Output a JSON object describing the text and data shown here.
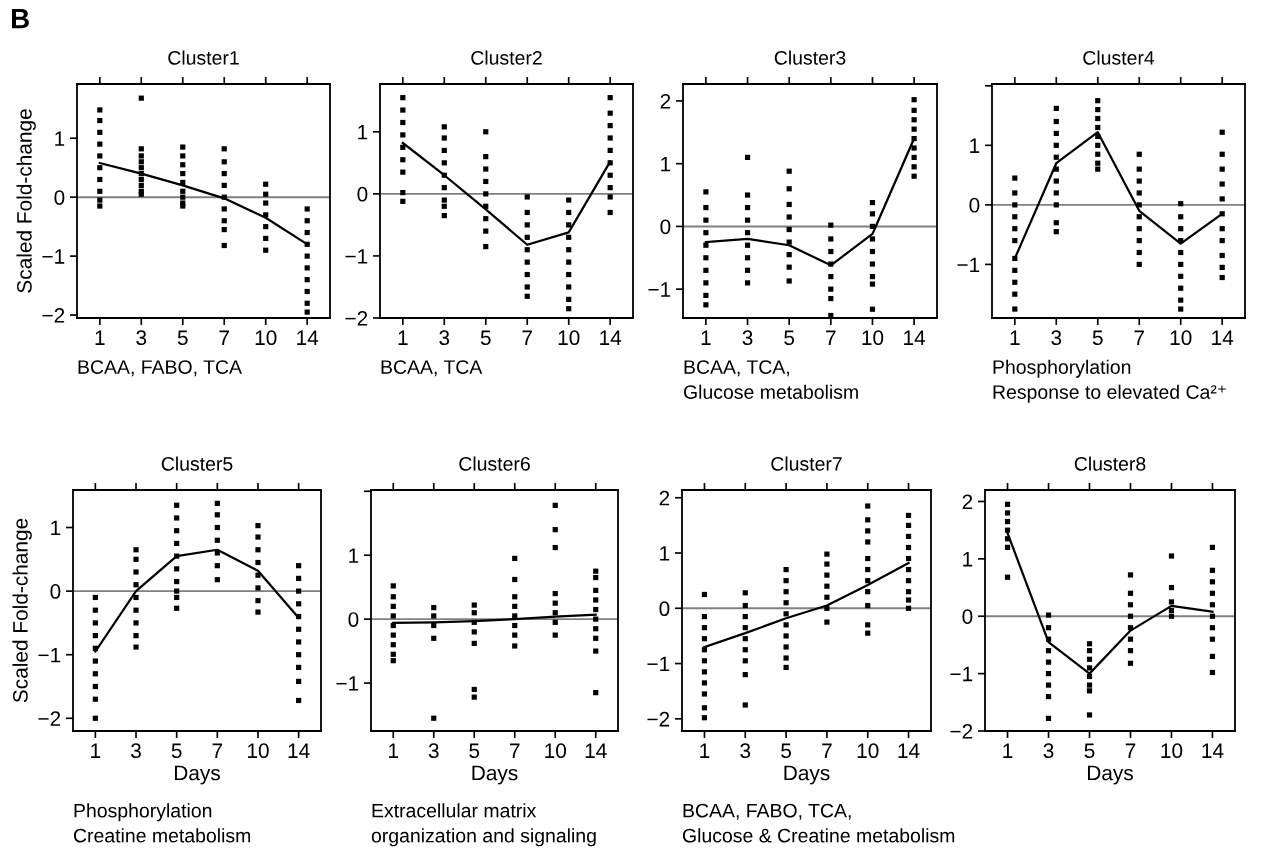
{
  "chart_data": [
    {
      "type": "other",
      "annotations": [
        "B"
      ]
    },
    {
      "type": "scatter",
      "title": "Cluster1",
      "ylabel": "Scaled Fold-change",
      "categories": [
        "1",
        "3",
        "5",
        "7",
        "10",
        "14"
      ],
      "ylim": [
        -2.05,
        1.92
      ],
      "yticks": [
        -2,
        -1,
        0,
        1
      ],
      "annotations": [
        "BCAA, FABO, TCA"
      ],
      "ref_lines": [
        {
          "axis": "y",
          "value": 0,
          "color": "#808080"
        }
      ],
      "series": [
        {
          "type": "scatter",
          "color": "#000000",
          "marker": "square",
          "x": [
            "1",
            "1",
            "1",
            "1",
            "1",
            "1",
            "1",
            "1",
            "1",
            "1",
            "3",
            "3",
            "3",
            "3",
            "3",
            "3",
            "3",
            "3",
            "3",
            "3",
            "5",
            "5",
            "5",
            "5",
            "5",
            "5",
            "5",
            "5",
            "5",
            "7",
            "7",
            "7",
            "7",
            "7",
            "7",
            "7",
            "7",
            "7",
            "10",
            "10",
            "10",
            "10",
            "10",
            "10",
            "10",
            "14",
            "14",
            "14",
            "14",
            "14",
            "14",
            "14",
            "14",
            "14",
            "14"
          ],
          "values": [
            1.48,
            1.3,
            1.1,
            0.9,
            0.7,
            0.5,
            0.3,
            0.1,
            -0.05,
            -0.15,
            1.68,
            0.82,
            0.7,
            0.6,
            0.5,
            0.4,
            0.3,
            0.2,
            0.1,
            0.05,
            0.85,
            0.7,
            0.55,
            0.4,
            0.25,
            0.1,
            0,
            -0.1,
            -0.15,
            0.82,
            0.6,
            0.4,
            0.2,
            0,
            -0.2,
            -0.4,
            -0.55,
            -0.82,
            0.22,
            0.05,
            -0.1,
            -0.3,
            -0.5,
            -0.7,
            -0.9,
            -0.2,
            -0.4,
            -0.6,
            -0.8,
            -1.0,
            -1.2,
            -1.4,
            -1.6,
            -1.8,
            -1.95
          ]
        },
        {
          "type": "line",
          "color": "#000000",
          "marker": "none",
          "values": [
            0.58,
            0.4,
            0.2,
            -0.02,
            -0.35,
            -0.8
          ]
        }
      ]
    },
    {
      "type": "scatter",
      "title": "Cluster2",
      "categories": [
        "1",
        "3",
        "5",
        "7",
        "10",
        "14"
      ],
      "ylim": [
        -2.0,
        1.77
      ],
      "yticks": [
        -2,
        -1,
        0,
        1
      ],
      "annotations": [
        "BCAA, TCA"
      ],
      "ref_lines": [
        {
          "axis": "y",
          "value": 0,
          "color": "#808080"
        }
      ],
      "series": [
        {
          "type": "scatter",
          "color": "#000000",
          "marker": "square",
          "x": [
            "1",
            "1",
            "1",
            "1",
            "1",
            "1",
            "1",
            "1",
            "1",
            "3",
            "3",
            "3",
            "3",
            "3",
            "3",
            "3",
            "3",
            "3",
            "5",
            "5",
            "5",
            "5",
            "5",
            "5",
            "5",
            "5",
            "5",
            "7",
            "7",
            "7",
            "7",
            "7",
            "7",
            "7",
            "7",
            "7",
            "10",
            "10",
            "10",
            "10",
            "10",
            "10",
            "10",
            "10",
            "10",
            "10",
            "14",
            "14",
            "14",
            "14",
            "14",
            "14",
            "14",
            "14",
            "14",
            "14"
          ],
          "values": [
            1.55,
            1.35,
            1.15,
            0.95,
            0.75,
            0.55,
            0.35,
            0.02,
            -0.12,
            1.08,
            0.9,
            0.7,
            0.5,
            0.3,
            0.1,
            -0.1,
            -0.2,
            -0.35,
            1.0,
            0.6,
            0.4,
            0.2,
            0,
            -0.2,
            -0.4,
            -0.6,
            -0.85,
            -0.05,
            -0.3,
            -0.5,
            -0.7,
            -0.9,
            -1.1,
            -1.3,
            -1.5,
            -1.65,
            -0.1,
            -0.3,
            -0.5,
            -0.7,
            -0.9,
            -1.1,
            -1.3,
            -1.5,
            -1.7,
            -1.85,
            1.55,
            1.3,
            1.1,
            0.9,
            0.7,
            0.5,
            0.3,
            0.1,
            -0.05,
            -0.3
          ]
        },
        {
          "type": "line",
          "color": "#000000",
          "marker": "none",
          "values": [
            0.82,
            0.3,
            -0.25,
            -0.82,
            -0.62,
            0.52
          ]
        }
      ]
    },
    {
      "type": "scatter",
      "title": "Cluster3",
      "categories": [
        "1",
        "3",
        "5",
        "7",
        "10",
        "14"
      ],
      "ylim": [
        -1.46,
        2.27
      ],
      "yticks": [
        -1,
        0,
        1,
        2
      ],
      "annotations": [
        "BCAA, TCA,",
        "Glucose metabolism"
      ],
      "ref_lines": [
        {
          "axis": "y",
          "value": 0,
          "color": "#808080"
        }
      ],
      "series": [
        {
          "type": "scatter",
          "color": "#000000",
          "marker": "square",
          "x": [
            "1",
            "1",
            "1",
            "1",
            "1",
            "1",
            "1",
            "1",
            "1",
            "1",
            "3",
            "3",
            "3",
            "3",
            "3",
            "3",
            "3",
            "3",
            "3",
            "5",
            "5",
            "5",
            "5",
            "5",
            "5",
            "5",
            "5",
            "5",
            "7",
            "7",
            "7",
            "7",
            "7",
            "7",
            "7",
            "7",
            "10",
            "10",
            "10",
            "10",
            "10",
            "10",
            "10",
            "10",
            "10",
            "14",
            "14",
            "14",
            "14",
            "14",
            "14",
            "14",
            "14",
            "14"
          ],
          "values": [
            0.55,
            0.3,
            0.1,
            -0.1,
            -0.3,
            -0.5,
            -0.7,
            -0.9,
            -1.1,
            -1.25,
            1.1,
            0.5,
            0.3,
            0.1,
            -0.1,
            -0.3,
            -0.5,
            -0.7,
            -0.9,
            0.88,
            0.6,
            0.35,
            0.15,
            -0.05,
            -0.25,
            -0.45,
            -0.65,
            -0.87,
            0.02,
            -0.2,
            -0.4,
            -0.6,
            -0.8,
            -1.0,
            -1.15,
            -1.42,
            0.38,
            0.2,
            0,
            -0.2,
            -0.4,
            -0.6,
            -0.8,
            -0.92,
            -1.32,
            2.02,
            1.85,
            1.7,
            1.55,
            1.4,
            1.25,
            1.1,
            0.95,
            0.8
          ]
        },
        {
          "type": "line",
          "color": "#000000",
          "marker": "none",
          "values": [
            -0.25,
            -0.2,
            -0.3,
            -0.62,
            -0.12,
            1.4
          ]
        }
      ]
    },
    {
      "type": "scatter",
      "title": "Cluster4",
      "categories": [
        "1",
        "3",
        "5",
        "7",
        "10",
        "14"
      ],
      "ylim": [
        -1.9,
        2.03
      ],
      "yticks": [
        -1,
        0,
        1,
        {
          "value": 2,
          "label": null
        }
      ],
      "annotations": [
        "Phosphorylation",
        "Response to elevated Ca²⁺"
      ],
      "ref_lines": [
        {
          "axis": "y",
          "value": 0,
          "color": "#808080"
        }
      ],
      "series": [
        {
          "type": "scatter",
          "color": "#000000",
          "marker": "square",
          "x": [
            "1",
            "1",
            "1",
            "1",
            "1",
            "1",
            "1",
            "1",
            "1",
            "1",
            "1",
            "3",
            "3",
            "3",
            "3",
            "3",
            "3",
            "3",
            "3",
            "3",
            "3",
            "3",
            "5",
            "5",
            "5",
            "5",
            "5",
            "5",
            "5",
            "5",
            "5",
            "7",
            "7",
            "7",
            "7",
            "7",
            "7",
            "7",
            "7",
            "7",
            "7",
            "10",
            "10",
            "10",
            "10",
            "10",
            "10",
            "10",
            "10",
            "10",
            "10",
            "14",
            "14",
            "14",
            "14",
            "14",
            "14",
            "14",
            "14",
            "14",
            "14",
            "14"
          ],
          "values": [
            0.45,
            0.2,
            0,
            -0.2,
            -0.4,
            -0.6,
            -0.9,
            -1.1,
            -1.3,
            -1.5,
            -1.75,
            1.62,
            1.4,
            1.2,
            1.0,
            0.8,
            0.6,
            0.4,
            0.2,
            0,
            -0.3,
            -0.45,
            1.75,
            1.6,
            1.45,
            1.3,
            1.15,
            1.0,
            0.85,
            0.7,
            0.6,
            0.85,
            0.6,
            0.4,
            0.2,
            0,
            -0.2,
            -0.4,
            -0.6,
            -0.8,
            -1.0,
            0.02,
            -0.2,
            -0.4,
            -0.6,
            -0.8,
            -1.0,
            -1.2,
            -1.4,
            -1.6,
            -1.75,
            1.22,
            0.85,
            0.6,
            0.35,
            0.1,
            -0.15,
            -0.4,
            -0.6,
            -0.85,
            -1.05,
            -1.22
          ]
        },
        {
          "type": "line",
          "color": "#000000",
          "marker": "none",
          "values": [
            -0.9,
            0.7,
            1.22,
            -0.1,
            -0.65,
            -0.15
          ]
        }
      ]
    },
    {
      "type": "scatter",
      "title": "Cluster5",
      "xlabel": "Days",
      "ylabel": "Scaled Fold-change",
      "categories": [
        "1",
        "3",
        "5",
        "7",
        "10",
        "14"
      ],
      "ylim": [
        -2.2,
        1.59
      ],
      "yticks": [
        -2,
        -1,
        0,
        1
      ],
      "annotations": [
        "Phosphorylation",
        "Creatine metabolism"
      ],
      "ref_lines": [
        {
          "axis": "y",
          "value": 0,
          "color": "#808080"
        }
      ],
      "series": [
        {
          "type": "scatter",
          "color": "#000000",
          "marker": "square",
          "x": [
            "1",
            "1",
            "1",
            "1",
            "1",
            "1",
            "1",
            "1",
            "1",
            "1",
            "3",
            "3",
            "3",
            "3",
            "3",
            "3",
            "3",
            "3",
            "3",
            "5",
            "5",
            "5",
            "5",
            "5",
            "5",
            "5",
            "5",
            "5",
            "5",
            "7",
            "7",
            "7",
            "7",
            "7",
            "7",
            "7",
            "10",
            "10",
            "10",
            "10",
            "10",
            "10",
            "10",
            "10",
            "14",
            "14",
            "14",
            "14",
            "14",
            "14",
            "14",
            "14",
            "14",
            "14",
            "14"
          ],
          "values": [
            -0.1,
            -0.3,
            -0.5,
            -0.7,
            -0.9,
            -1.1,
            -1.3,
            -1.5,
            -1.7,
            -2.0,
            0.65,
            0.5,
            0.3,
            0.1,
            -0.1,
            -0.3,
            -0.5,
            -0.7,
            -0.88,
            1.35,
            1.15,
            0.95,
            0.75,
            0.55,
            0.35,
            0.15,
            0,
            -0.1,
            -0.27,
            1.38,
            1.2,
            1.0,
            0.8,
            0.6,
            0.4,
            0.18,
            1.03,
            0.85,
            0.65,
            0.45,
            0.25,
            0.05,
            -0.15,
            -0.33,
            0.4,
            0.2,
            0,
            -0.2,
            -0.4,
            -0.6,
            -0.8,
            -1.0,
            -1.2,
            -1.42,
            -1.72
          ]
        },
        {
          "type": "line",
          "color": "#000000",
          "marker": "none",
          "values": [
            -0.95,
            0,
            0.55,
            0.65,
            0.32,
            -0.42
          ]
        }
      ]
    },
    {
      "type": "scatter",
      "title": "Cluster6",
      "xlabel": "Days",
      "categories": [
        "1",
        "3",
        "5",
        "7",
        "10",
        "14"
      ],
      "ylim": [
        -1.75,
        2.02
      ],
      "yticks": [
        -1,
        0,
        1,
        {
          "value": 2,
          "label": null
        }
      ],
      "annotations": [
        "Extracellular matrix",
        "organization and signaling"
      ],
      "ref_lines": [
        {
          "axis": "y",
          "value": 0,
          "color": "#808080"
        }
      ],
      "series": [
        {
          "type": "scatter",
          "color": "#000000",
          "marker": "square",
          "x": [
            "1",
            "1",
            "1",
            "1",
            "1",
            "1",
            "1",
            "1",
            "1",
            "3",
            "3",
            "3",
            "3",
            "3",
            "5",
            "5",
            "5",
            "5",
            "5",
            "5",
            "5",
            "7",
            "7",
            "7",
            "7",
            "7",
            "7",
            "7",
            "7",
            "10",
            "10",
            "10",
            "10",
            "10",
            "10",
            "10",
            "10",
            "14",
            "14",
            "14",
            "14",
            "14",
            "14",
            "14",
            "14",
            "14",
            "14"
          ],
          "values": [
            0.52,
            0.35,
            0.2,
            0.05,
            -0.1,
            -0.25,
            -0.4,
            -0.55,
            -0.65,
            0.18,
            0.05,
            -0.1,
            -0.3,
            -1.55,
            0.22,
            0.1,
            -0.05,
            -0.2,
            -0.38,
            -1.1,
            -1.22,
            0.95,
            0.62,
            0.35,
            0.2,
            0.05,
            -0.1,
            -0.25,
            -0.42,
            1.78,
            1.4,
            1.12,
            0.4,
            0.25,
            0.1,
            -0.05,
            -0.25,
            0.75,
            0.65,
            0.45,
            0.3,
            0.15,
            0,
            -0.15,
            -0.3,
            -0.5,
            -1.15
          ]
        },
        {
          "type": "line",
          "color": "#000000",
          "marker": "none",
          "values": [
            -0.06,
            -0.05,
            -0.03,
            0,
            0.04,
            0.07
          ]
        }
      ]
    },
    {
      "type": "scatter",
      "title": "Cluster7",
      "xlabel": "Days",
      "categories": [
        "1",
        "3",
        "5",
        "7",
        "10",
        "14"
      ],
      "ylim": [
        -2.22,
        2.14
      ],
      "yticks": [
        -2,
        -1,
        0,
        1,
        2
      ],
      "annotations": [
        "BCAA, FABO, TCA,",
        "Glucose & Creatine metabolism"
      ],
      "ref_lines": [
        {
          "axis": "y",
          "value": 0,
          "color": "#808080"
        }
      ],
      "series": [
        {
          "type": "scatter",
          "color": "#000000",
          "marker": "square",
          "x": [
            "1",
            "1",
            "1",
            "1",
            "1",
            "1",
            "1",
            "1",
            "1",
            "1",
            "1",
            "3",
            "3",
            "3",
            "3",
            "3",
            "3",
            "3",
            "3",
            "3",
            "5",
            "5",
            "5",
            "5",
            "5",
            "5",
            "5",
            "5",
            "5",
            "5",
            "7",
            "7",
            "7",
            "7",
            "7",
            "7",
            "7",
            "10",
            "10",
            "10",
            "10",
            "10",
            "10",
            "10",
            "10",
            "10",
            "10",
            "10",
            "14",
            "14",
            "14",
            "14",
            "14",
            "14",
            "14",
            "14",
            "14",
            "14"
          ],
          "values": [
            0.25,
            -0.15,
            -0.35,
            -0.55,
            -0.75,
            -0.95,
            -1.15,
            -1.35,
            -1.55,
            -1.8,
            -1.98,
            0.28,
            0.05,
            -0.15,
            -0.35,
            -0.55,
            -0.75,
            -0.95,
            -1.2,
            -1.75,
            0.7,
            0.5,
            0.3,
            0.1,
            -0.1,
            -0.3,
            -0.5,
            -0.7,
            -0.9,
            -1.07,
            0.98,
            0.8,
            0.6,
            0.4,
            0.2,
            0,
            -0.25,
            1.85,
            1.6,
            1.4,
            1.2,
            0.9,
            0.7,
            0.5,
            0.3,
            0.05,
            -0.3,
            -0.45,
            1.68,
            1.5,
            1.3,
            1.1,
            0.9,
            0.7,
            0.5,
            0.3,
            0.15,
            0
          ]
        },
        {
          "type": "line",
          "color": "#000000",
          "marker": "none",
          "values": [
            -0.7,
            -0.45,
            -0.18,
            0.05,
            0.42,
            0.82
          ]
        }
      ]
    },
    {
      "type": "scatter",
      "title": "Cluster8",
      "xlabel": "Days",
      "categories": [
        "1",
        "3",
        "5",
        "7",
        "10",
        "14"
      ],
      "ylim": [
        -2.0,
        2.2
      ],
      "yticks": [
        -2,
        -1,
        0,
        1,
        2
      ],
      "ref_lines": [
        {
          "axis": "y",
          "value": 0,
          "color": "#808080"
        }
      ],
      "series": [
        {
          "type": "scatter",
          "color": "#000000",
          "marker": "square",
          "x": [
            "1",
            "1",
            "1",
            "1",
            "1",
            "1",
            "1",
            "3",
            "3",
            "3",
            "3",
            "3",
            "3",
            "3",
            "3",
            "3",
            "5",
            "5",
            "5",
            "5",
            "5",
            "5",
            "5",
            "5",
            "7",
            "7",
            "7",
            "7",
            "7",
            "7",
            "7",
            "7",
            "10",
            "10",
            "10",
            "10",
            "10",
            "14",
            "14",
            "14",
            "14",
            "14",
            "14",
            "14",
            "14",
            "14",
            "14"
          ],
          "values": [
            1.95,
            1.8,
            1.65,
            1.5,
            1.35,
            1.2,
            0.68,
            0.02,
            -0.2,
            -0.4,
            -0.6,
            -0.8,
            -1.0,
            -1.2,
            -1.4,
            -1.78,
            -0.48,
            -0.6,
            -0.75,
            -0.9,
            -1.05,
            -1.2,
            -1.3,
            -1.72,
            0.72,
            0.4,
            0.2,
            0,
            -0.2,
            -0.4,
            -0.6,
            -0.82,
            1.05,
            0.5,
            0.25,
            0.1,
            0,
            1.2,
            0.8,
            0.6,
            0.4,
            0.2,
            0,
            -0.2,
            -0.4,
            -0.7,
            -0.98
          ]
        },
        {
          "type": "line",
          "color": "#000000",
          "marker": "none",
          "values": [
            1.45,
            -0.45,
            -1.0,
            -0.25,
            0.18,
            0.08
          ]
        }
      ]
    }
  ]
}
